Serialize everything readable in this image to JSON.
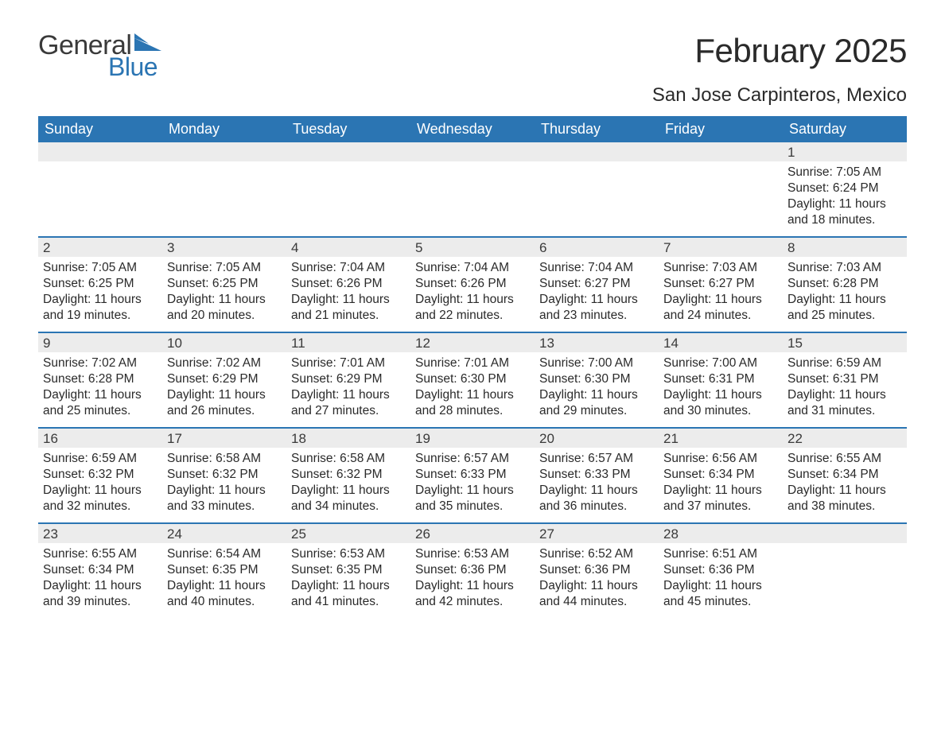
{
  "logo": {
    "general": "General",
    "blue": "Blue"
  },
  "title": "February 2025",
  "location": "San Jose Carpinteros, Mexico",
  "colors": {
    "header_bg": "#2b75b3",
    "header_text": "#ffffff",
    "row_border": "#2b75b3",
    "daynum_bg": "#ececec",
    "text": "#2a2a2a",
    "logo_blue": "#2b75b3"
  },
  "day_labels": [
    "Sunday",
    "Monday",
    "Tuesday",
    "Wednesday",
    "Thursday",
    "Friday",
    "Saturday"
  ],
  "weeks": [
    [
      null,
      null,
      null,
      null,
      null,
      null,
      {
        "d": "1",
        "sr": "Sunrise: 7:05 AM",
        "ss": "Sunset: 6:24 PM",
        "dl1": "Daylight: 11 hours",
        "dl2": "and 18 minutes."
      }
    ],
    [
      {
        "d": "2",
        "sr": "Sunrise: 7:05 AM",
        "ss": "Sunset: 6:25 PM",
        "dl1": "Daylight: 11 hours",
        "dl2": "and 19 minutes."
      },
      {
        "d": "3",
        "sr": "Sunrise: 7:05 AM",
        "ss": "Sunset: 6:25 PM",
        "dl1": "Daylight: 11 hours",
        "dl2": "and 20 minutes."
      },
      {
        "d": "4",
        "sr": "Sunrise: 7:04 AM",
        "ss": "Sunset: 6:26 PM",
        "dl1": "Daylight: 11 hours",
        "dl2": "and 21 minutes."
      },
      {
        "d": "5",
        "sr": "Sunrise: 7:04 AM",
        "ss": "Sunset: 6:26 PM",
        "dl1": "Daylight: 11 hours",
        "dl2": "and 22 minutes."
      },
      {
        "d": "6",
        "sr": "Sunrise: 7:04 AM",
        "ss": "Sunset: 6:27 PM",
        "dl1": "Daylight: 11 hours",
        "dl2": "and 23 minutes."
      },
      {
        "d": "7",
        "sr": "Sunrise: 7:03 AM",
        "ss": "Sunset: 6:27 PM",
        "dl1": "Daylight: 11 hours",
        "dl2": "and 24 minutes."
      },
      {
        "d": "8",
        "sr": "Sunrise: 7:03 AM",
        "ss": "Sunset: 6:28 PM",
        "dl1": "Daylight: 11 hours",
        "dl2": "and 25 minutes."
      }
    ],
    [
      {
        "d": "9",
        "sr": "Sunrise: 7:02 AM",
        "ss": "Sunset: 6:28 PM",
        "dl1": "Daylight: 11 hours",
        "dl2": "and 25 minutes."
      },
      {
        "d": "10",
        "sr": "Sunrise: 7:02 AM",
        "ss": "Sunset: 6:29 PM",
        "dl1": "Daylight: 11 hours",
        "dl2": "and 26 minutes."
      },
      {
        "d": "11",
        "sr": "Sunrise: 7:01 AM",
        "ss": "Sunset: 6:29 PM",
        "dl1": "Daylight: 11 hours",
        "dl2": "and 27 minutes."
      },
      {
        "d": "12",
        "sr": "Sunrise: 7:01 AM",
        "ss": "Sunset: 6:30 PM",
        "dl1": "Daylight: 11 hours",
        "dl2": "and 28 minutes."
      },
      {
        "d": "13",
        "sr": "Sunrise: 7:00 AM",
        "ss": "Sunset: 6:30 PM",
        "dl1": "Daylight: 11 hours",
        "dl2": "and 29 minutes."
      },
      {
        "d": "14",
        "sr": "Sunrise: 7:00 AM",
        "ss": "Sunset: 6:31 PM",
        "dl1": "Daylight: 11 hours",
        "dl2": "and 30 minutes."
      },
      {
        "d": "15",
        "sr": "Sunrise: 6:59 AM",
        "ss": "Sunset: 6:31 PM",
        "dl1": "Daylight: 11 hours",
        "dl2": "and 31 minutes."
      }
    ],
    [
      {
        "d": "16",
        "sr": "Sunrise: 6:59 AM",
        "ss": "Sunset: 6:32 PM",
        "dl1": "Daylight: 11 hours",
        "dl2": "and 32 minutes."
      },
      {
        "d": "17",
        "sr": "Sunrise: 6:58 AM",
        "ss": "Sunset: 6:32 PM",
        "dl1": "Daylight: 11 hours",
        "dl2": "and 33 minutes."
      },
      {
        "d": "18",
        "sr": "Sunrise: 6:58 AM",
        "ss": "Sunset: 6:32 PM",
        "dl1": "Daylight: 11 hours",
        "dl2": "and 34 minutes."
      },
      {
        "d": "19",
        "sr": "Sunrise: 6:57 AM",
        "ss": "Sunset: 6:33 PM",
        "dl1": "Daylight: 11 hours",
        "dl2": "and 35 minutes."
      },
      {
        "d": "20",
        "sr": "Sunrise: 6:57 AM",
        "ss": "Sunset: 6:33 PM",
        "dl1": "Daylight: 11 hours",
        "dl2": "and 36 minutes."
      },
      {
        "d": "21",
        "sr": "Sunrise: 6:56 AM",
        "ss": "Sunset: 6:34 PM",
        "dl1": "Daylight: 11 hours",
        "dl2": "and 37 minutes."
      },
      {
        "d": "22",
        "sr": "Sunrise: 6:55 AM",
        "ss": "Sunset: 6:34 PM",
        "dl1": "Daylight: 11 hours",
        "dl2": "and 38 minutes."
      }
    ],
    [
      {
        "d": "23",
        "sr": "Sunrise: 6:55 AM",
        "ss": "Sunset: 6:34 PM",
        "dl1": "Daylight: 11 hours",
        "dl2": "and 39 minutes."
      },
      {
        "d": "24",
        "sr": "Sunrise: 6:54 AM",
        "ss": "Sunset: 6:35 PM",
        "dl1": "Daylight: 11 hours",
        "dl2": "and 40 minutes."
      },
      {
        "d": "25",
        "sr": "Sunrise: 6:53 AM",
        "ss": "Sunset: 6:35 PM",
        "dl1": "Daylight: 11 hours",
        "dl2": "and 41 minutes."
      },
      {
        "d": "26",
        "sr": "Sunrise: 6:53 AM",
        "ss": "Sunset: 6:36 PM",
        "dl1": "Daylight: 11 hours",
        "dl2": "and 42 minutes."
      },
      {
        "d": "27",
        "sr": "Sunrise: 6:52 AM",
        "ss": "Sunset: 6:36 PM",
        "dl1": "Daylight: 11 hours",
        "dl2": "and 44 minutes."
      },
      {
        "d": "28",
        "sr": "Sunrise: 6:51 AM",
        "ss": "Sunset: 6:36 PM",
        "dl1": "Daylight: 11 hours",
        "dl2": "and 45 minutes."
      },
      null
    ]
  ]
}
